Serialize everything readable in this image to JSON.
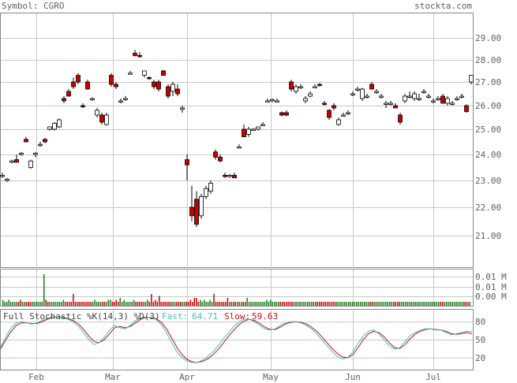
{
  "header": {
    "symbol_text": "Symbol: CGRO",
    "brand": "stockta.com"
  },
  "colors": {
    "up": "#ffffff",
    "down": "#cc0000",
    "vol_up": "#1a7a1a",
    "vol_down": "#cc0000",
    "fast": "#40c0c0",
    "slow": "#c01010",
    "grid": "#c8c8c8",
    "text": "#606060"
  },
  "chart_data": [
    {
      "type": "candlestick",
      "title": "Symbol: CGRO",
      "ylim": [
        20.2,
        29.7
      ],
      "y_ticks": [
        "29.00",
        "28.00",
        "27.00",
        "26.00",
        "25.00",
        "24.00",
        "23.00",
        "22.00",
        "21.00"
      ],
      "x_ticks": [
        "Feb",
        "Mar",
        "Apr",
        "May",
        "Jun",
        "Jul"
      ],
      "grid": true,
      "candles": [
        [
          23.2,
          23.3,
          23.1,
          23.2
        ],
        [
          23.0,
          23.1,
          22.95,
          23.05
        ],
        [
          23.7,
          23.8,
          23.65,
          23.75
        ],
        [
          23.8,
          24.0,
          23.7,
          23.7
        ],
        [
          24.0,
          24.1,
          23.95,
          24.05
        ],
        [
          24.6,
          24.7,
          24.5,
          24.5
        ],
        [
          23.5,
          23.8,
          23.45,
          23.75
        ],
        [
          24.0,
          24.1,
          23.9,
          24.05
        ],
        [
          24.4,
          24.5,
          24.3,
          24.4
        ],
        [
          24.6,
          24.65,
          24.45,
          24.5
        ],
        [
          25.0,
          25.1,
          24.95,
          25.1
        ],
        [
          25.0,
          25.3,
          24.95,
          25.25
        ],
        [
          25.1,
          25.45,
          25.05,
          25.4
        ],
        [
          26.3,
          26.4,
          26.1,
          26.2
        ],
        [
          26.6,
          26.7,
          26.4,
          26.4
        ],
        [
          27.0,
          27.2,
          26.7,
          26.8
        ],
        [
          27.3,
          27.4,
          26.9,
          27.0
        ],
        [
          26.0,
          26.1,
          25.9,
          25.95
        ],
        [
          27.0,
          27.1,
          26.7,
          26.7
        ],
        [
          26.3,
          26.35,
          26.2,
          26.3
        ],
        [
          25.6,
          25.9,
          25.5,
          25.8
        ],
        [
          25.6,
          25.7,
          25.2,
          25.3
        ],
        [
          25.2,
          25.7,
          25.15,
          25.6
        ],
        [
          27.3,
          27.4,
          26.8,
          26.9
        ],
        [
          26.9,
          27.0,
          26.7,
          26.8
        ],
        [
          26.2,
          26.3,
          26.1,
          26.2
        ],
        [
          26.3,
          26.4,
          26.2,
          26.3
        ],
        [
          27.4,
          27.5,
          27.35,
          27.4
        ],
        [
          28.3,
          28.45,
          28.15,
          28.2
        ],
        [
          28.2,
          28.35,
          28.1,
          28.15
        ],
        [
          27.3,
          27.5,
          27.2,
          27.5
        ],
        [
          27.2,
          27.25,
          27.1,
          27.15
        ],
        [
          27.0,
          27.1,
          26.7,
          26.8
        ],
        [
          27.0,
          27.1,
          26.6,
          26.7
        ],
        [
          27.5,
          27.55,
          27.3,
          27.3
        ],
        [
          26.8,
          26.9,
          26.3,
          26.4
        ],
        [
          26.6,
          27.0,
          26.4,
          26.9
        ],
        [
          26.7,
          26.9,
          26.4,
          26.5
        ],
        [
          25.9,
          26.0,
          25.7,
          25.9
        ],
        [
          23.8,
          24.0,
          23.0,
          23.6
        ],
        [
          22.0,
          22.8,
          21.5,
          21.7
        ],
        [
          22.3,
          22.6,
          21.3,
          21.4
        ],
        [
          21.7,
          22.5,
          21.6,
          22.4
        ],
        [
          22.4,
          22.8,
          22.3,
          22.7
        ],
        [
          22.6,
          23.0,
          22.5,
          22.9
        ],
        [
          24.1,
          24.2,
          23.8,
          23.9
        ],
        [
          23.9,
          24.0,
          23.7,
          23.75
        ],
        [
          23.2,
          23.3,
          23.1,
          23.15
        ],
        [
          23.2,
          23.25,
          23.1,
          23.2
        ],
        [
          23.2,
          23.3,
          23.1,
          23.1
        ],
        [
          24.3,
          24.4,
          24.25,
          24.3
        ],
        [
          25.0,
          25.2,
          24.7,
          24.7
        ],
        [
          24.8,
          25.1,
          24.7,
          25.0
        ],
        [
          25.0,
          25.05,
          24.95,
          25.0
        ],
        [
          25.0,
          25.1,
          24.95,
          25.1
        ],
        [
          25.2,
          25.3,
          25.15,
          25.2
        ],
        [
          26.2,
          26.3,
          26.15,
          26.2
        ],
        [
          26.2,
          26.3,
          26.15,
          26.25
        ],
        [
          26.2,
          26.3,
          26.15,
          26.2
        ],
        [
          25.7,
          25.75,
          25.55,
          25.6
        ],
        [
          25.7,
          25.8,
          25.55,
          25.6
        ],
        [
          27.0,
          27.1,
          26.6,
          26.7
        ],
        [
          26.6,
          26.9,
          26.5,
          26.8
        ],
        [
          26.8,
          26.9,
          26.7,
          26.8
        ],
        [
          26.2,
          26.4,
          26.1,
          26.3
        ],
        [
          26.4,
          26.6,
          26.35,
          26.5
        ],
        [
          26.8,
          26.9,
          26.75,
          26.8
        ],
        [
          26.9,
          26.95,
          26.8,
          26.85
        ],
        [
          26.1,
          26.2,
          26.0,
          26.05
        ],
        [
          25.8,
          25.85,
          25.4,
          25.5
        ],
        [
          26.0,
          26.1,
          25.8,
          25.9
        ],
        [
          25.2,
          25.5,
          25.15,
          25.4
        ],
        [
          25.6,
          25.7,
          25.55,
          25.6
        ],
        [
          25.7,
          25.8,
          25.6,
          25.7
        ],
        [
          26.5,
          26.6,
          26.4,
          26.5
        ],
        [
          26.7,
          26.8,
          26.6,
          26.7
        ],
        [
          26.3,
          26.75,
          26.2,
          26.7
        ],
        [
          26.4,
          26.5,
          26.3,
          26.4
        ],
        [
          26.9,
          27.0,
          26.7,
          26.7
        ],
        [
          26.6,
          26.7,
          26.5,
          26.6
        ],
        [
          26.4,
          26.5,
          26.3,
          26.4
        ],
        [
          26.1,
          26.2,
          25.9,
          26.1
        ],
        [
          26.1,
          26.2,
          26.0,
          26.1
        ],
        [
          26.0,
          26.1,
          25.9,
          25.9
        ],
        [
          25.6,
          25.7,
          25.2,
          25.3
        ],
        [
          26.2,
          26.5,
          26.1,
          26.4
        ],
        [
          26.4,
          26.6,
          26.3,
          26.4
        ],
        [
          26.3,
          26.6,
          26.2,
          26.5
        ],
        [
          26.3,
          26.5,
          26.2,
          26.3
        ],
        [
          26.6,
          26.7,
          26.5,
          26.6
        ],
        [
          26.4,
          26.5,
          26.3,
          26.4
        ],
        [
          26.2,
          26.3,
          26.1,
          26.2
        ],
        [
          26.3,
          26.4,
          26.2,
          26.3
        ],
        [
          26.4,
          26.5,
          26.1,
          26.1
        ],
        [
          26.1,
          26.4,
          26.0,
          26.3
        ],
        [
          26.1,
          26.2,
          26.0,
          26.1
        ],
        [
          26.3,
          26.4,
          26.2,
          26.3
        ],
        [
          26.4,
          26.5,
          26.3,
          26.4
        ],
        [
          26.0,
          26.05,
          25.7,
          25.75
        ],
        [
          27.0,
          27.3,
          26.9,
          27.3
        ]
      ]
    },
    {
      "type": "bar",
      "title": "Volume",
      "y_ticks": [
        "0.01 M",
        "0.01 M",
        "0.00 M",
        "0.00 M"
      ],
      "values": [
        3,
        2,
        2,
        3,
        2,
        2,
        2,
        2,
        2,
        3,
        2,
        2,
        2,
        2,
        2,
        2,
        2,
        2,
        2,
        2,
        2,
        16,
        3,
        2,
        2,
        2,
        2,
        2,
        2,
        2,
        2,
        3,
        2,
        2,
        2,
        2,
        6,
        2,
        2,
        2,
        2,
        2,
        2,
        2,
        2,
        2,
        2,
        3,
        2,
        2,
        2,
        2,
        2,
        2,
        3,
        3,
        2,
        2,
        3,
        2,
        4,
        2,
        3,
        2,
        2,
        2,
        2,
        3,
        2,
        2,
        2,
        2,
        2,
        2,
        3,
        2,
        6,
        2,
        3,
        2,
        5,
        2,
        2,
        2,
        2,
        2,
        2,
        2,
        2,
        2,
        2,
        2,
        2,
        2,
        2,
        2,
        3,
        2,
        4,
        4,
        2,
        3,
        2,
        3,
        2,
        2,
        3,
        2,
        6,
        2,
        2,
        2,
        2,
        2,
        2,
        4,
        2,
        2,
        2,
        2,
        2,
        2,
        2,
        2,
        2,
        4,
        2,
        2,
        2,
        2,
        2,
        2,
        2,
        2,
        2,
        3,
        2,
        3,
        2,
        2,
        2,
        2,
        2,
        2,
        2,
        2,
        2,
        2,
        2,
        2,
        2,
        2,
        2,
        2,
        2,
        2,
        2,
        2,
        2,
        2,
        2,
        2,
        2,
        2,
        2,
        2,
        2,
        2,
        2,
        2,
        2,
        2,
        2,
        2,
        2,
        2,
        2,
        2,
        2,
        2,
        2,
        2,
        2,
        2,
        2,
        2,
        2,
        2,
        2,
        2,
        2,
        2,
        2,
        2,
        2,
        2,
        2,
        2,
        2,
        2,
        2,
        2,
        2,
        2,
        2,
        2,
        2,
        2,
        2,
        2,
        2,
        2,
        2,
        2,
        2,
        2,
        2,
        2,
        2,
        2,
        2,
        2,
        2,
        2,
        2,
        2,
        2,
        2,
        2,
        2,
        2,
        2,
        2,
        2,
        2,
        2,
        2,
        2,
        2,
        2
      ],
      "note_values": "relative bar heights as read from the panel",
      "bar_colors_ref": "up=vol_up, down=vol_down"
    },
    {
      "type": "line",
      "title": "Full Stochastic %K(14,3) %D(3)",
      "fast_label": "Fast:",
      "fast_value": "64.71",
      "slow_label": "Slow:",
      "slow_value": "59.63",
      "y_ticks": [
        "80",
        "50",
        "20"
      ],
      "ylim": [
        0,
        100
      ],
      "series": [
        {
          "name": "Fast",
          "values": [
            38,
            55,
            70,
            78,
            80,
            78,
            76,
            78,
            82,
            86,
            88,
            88,
            86,
            84,
            80,
            72,
            62,
            50,
            42,
            45,
            54,
            66,
            74,
            70,
            68,
            74,
            82,
            86,
            88,
            86,
            84,
            75,
            62,
            45,
            30,
            20,
            14,
            12,
            12,
            16,
            22,
            30,
            40,
            52,
            62,
            72,
            80,
            84,
            84,
            80,
            74,
            68,
            66,
            68,
            74,
            78,
            80,
            80,
            78,
            74,
            68,
            60,
            50,
            40,
            30,
            22,
            18,
            20,
            30,
            44,
            56,
            64,
            66,
            60,
            50,
            40,
            34,
            36,
            46,
            56,
            62,
            66,
            68,
            68,
            66,
            66,
            62,
            58,
            60,
            62,
            64,
            64
          ]
        },
        {
          "name": "Slow",
          "values": [
            35,
            50,
            64,
            74,
            78,
            78,
            77,
            77,
            80,
            84,
            87,
            88,
            87,
            85,
            82,
            76,
            67,
            56,
            47,
            45,
            50,
            60,
            70,
            72,
            70,
            72,
            78,
            84,
            87,
            87,
            85,
            79,
            68,
            53,
            37,
            25,
            17,
            13,
            12,
            14,
            18,
            25,
            34,
            45,
            56,
            66,
            75,
            81,
            84,
            82,
            77,
            71,
            67,
            67,
            71,
            76,
            79,
            80,
            79,
            76,
            71,
            64,
            55,
            45,
            35,
            27,
            21,
            20,
            25,
            37,
            50,
            60,
            64,
            62,
            55,
            45,
            37,
            35,
            41,
            51,
            59,
            64,
            67,
            68,
            67,
            66,
            64,
            60,
            59,
            60,
            62,
            60
          ]
        }
      ]
    }
  ]
}
